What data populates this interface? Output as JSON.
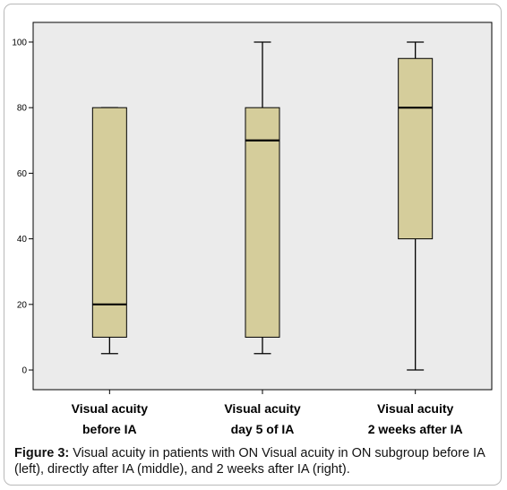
{
  "chart_data": {
    "type": "boxplot",
    "categories": [
      [
        "Visual acuity",
        "before IA"
      ],
      [
        "Visual acuity",
        "day 5 of IA"
      ],
      [
        "Visual acuity",
        "2 weeks after IA"
      ]
    ],
    "boxes": [
      {
        "min": 5,
        "q1": 10,
        "median": 20,
        "q3": 80,
        "max": 80
      },
      {
        "min": 5,
        "q1": 10,
        "median": 70,
        "q3": 80,
        "max": 100
      },
      {
        "min": 0,
        "q1": 40,
        "median": 80,
        "q3": 95,
        "max": 100
      }
    ],
    "yticks": [
      0,
      20,
      40,
      60,
      80,
      100
    ],
    "ylim": [
      -6,
      106
    ],
    "grid": false,
    "colors": {
      "plot_bg": "#ebebeb",
      "box_fill": "#d5cd9b",
      "line": "#000000"
    }
  },
  "caption": {
    "label": "Figure 3:",
    "text": " Visual acuity in patients with ON Visual acuity in ON subgroup before IA (left), directly after IA (middle), and 2 weeks after IA (right)."
  }
}
